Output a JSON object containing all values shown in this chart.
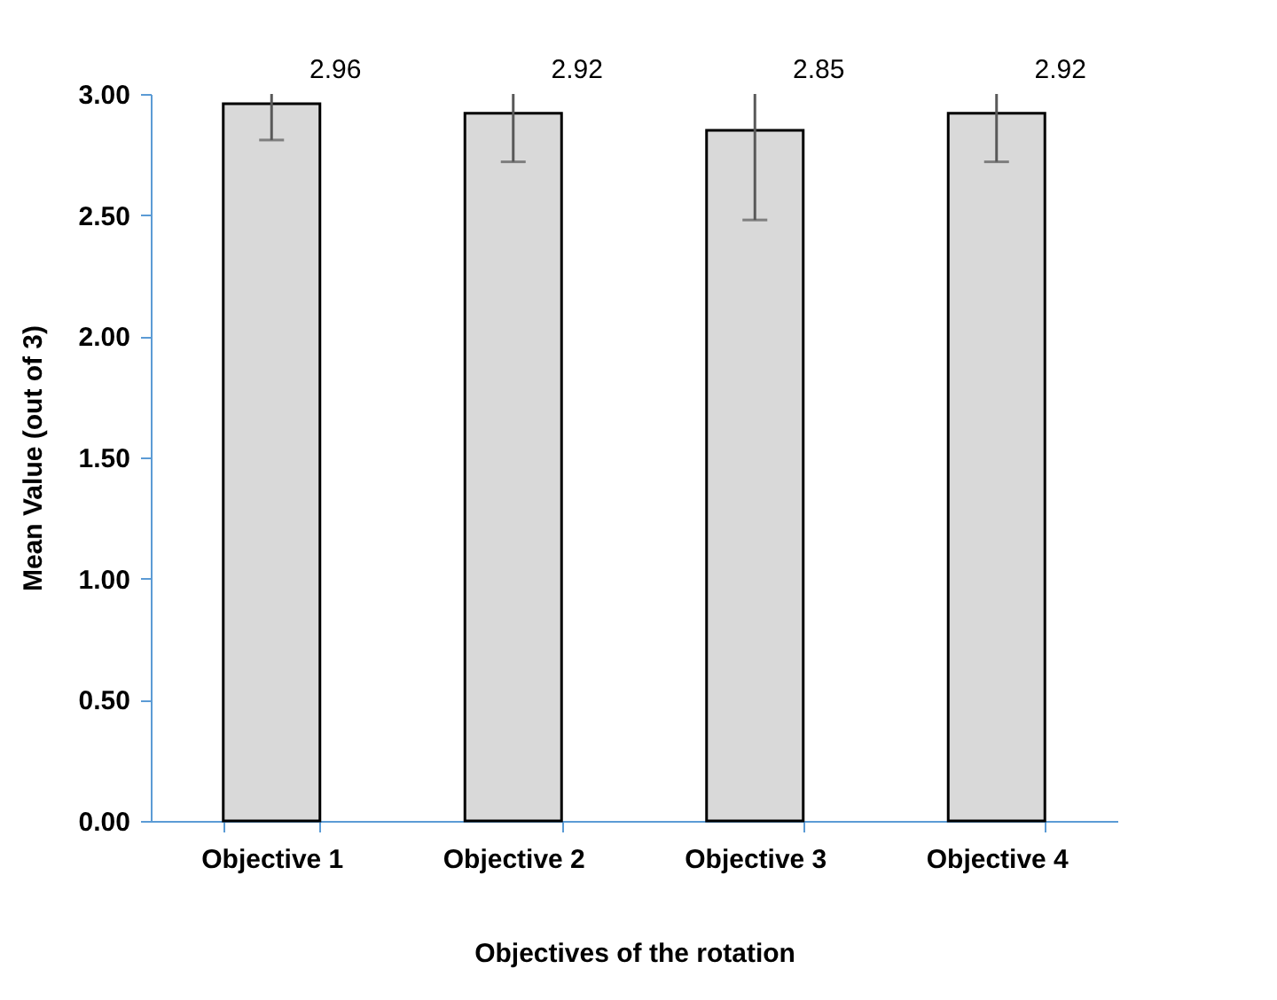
{
  "chart_data": {
    "type": "bar",
    "xlabel": "Objectives of the rotation",
    "ylabel": "Mean Value (out of 3)",
    "categories": [
      "Objective 1",
      "Objective 2",
      "Objective 3",
      "Objective 4"
    ],
    "values": [
      2.96,
      2.92,
      2.85,
      2.92
    ],
    "errors": [
      [
        2.81,
        3.0
      ],
      [
        2.72,
        3.0
      ],
      [
        2.48,
        3.0
      ],
      [
        2.72,
        3.0
      ]
    ],
    "color": "#d9d9d9",
    "data_labels": true,
    "grid": false,
    "ylim": [
      0,
      3
    ],
    "yticks": [
      {
        "value": 0,
        "label": "0.00"
      },
      {
        "value": 0.5,
        "label": "0.50"
      },
      {
        "value": 1,
        "label": "1.00"
      },
      {
        "value": 1.5,
        "label": "1.50"
      },
      {
        "value": 2,
        "label": "2.00"
      },
      {
        "value": 2.5,
        "label": "2.50"
      },
      {
        "value": 3,
        "label": "3.00"
      }
    ]
  }
}
